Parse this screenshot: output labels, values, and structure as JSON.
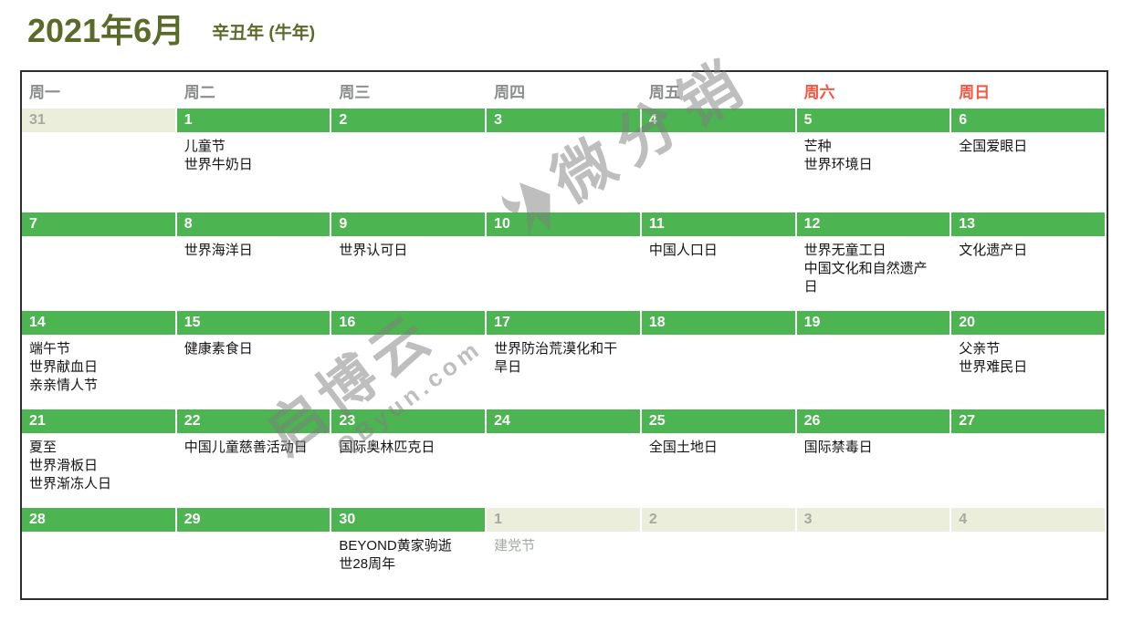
{
  "header": {
    "title": "2021年6月",
    "subtitle": "辛丑年 (牛年)"
  },
  "colors": {
    "title_green": "#5a6a28",
    "bar_green": "#4cb451",
    "bar_out_beige": "#ebeedb",
    "weekday_gray": "#8b8e8e",
    "weekend_red": "#fb5440",
    "event_text": "#141414",
    "out_text": "#a3a9a3",
    "table_border": "#2e2e2e"
  },
  "calendar": {
    "weekdays": [
      {
        "label": "周一",
        "weekend": false
      },
      {
        "label": "周二",
        "weekend": false
      },
      {
        "label": "周三",
        "weekend": false
      },
      {
        "label": "周四",
        "weekend": false
      },
      {
        "label": "周五",
        "weekend": false
      },
      {
        "label": "周六",
        "weekend": true
      },
      {
        "label": "周日",
        "weekend": true
      }
    ],
    "weeks": [
      [
        {
          "num": "31",
          "type": "out",
          "events": []
        },
        {
          "num": "1",
          "type": "cur",
          "events": [
            "儿童节",
            "世界牛奶日"
          ]
        },
        {
          "num": "2",
          "type": "cur",
          "events": []
        },
        {
          "num": "3",
          "type": "cur",
          "events": []
        },
        {
          "num": "4",
          "type": "cur",
          "events": []
        },
        {
          "num": "5",
          "type": "cur",
          "events": [
            "芒种",
            "世界环境日"
          ]
        },
        {
          "num": "6",
          "type": "cur",
          "events": [
            "全国爱眼日"
          ]
        }
      ],
      [
        {
          "num": "7",
          "type": "cur",
          "events": []
        },
        {
          "num": "8",
          "type": "cur",
          "events": [
            "世界海洋日"
          ]
        },
        {
          "num": "9",
          "type": "cur",
          "events": [
            "世界认可日"
          ]
        },
        {
          "num": "10",
          "type": "cur",
          "events": []
        },
        {
          "num": "11",
          "type": "cur",
          "events": [
            "中国人口日"
          ]
        },
        {
          "num": "12",
          "type": "cur",
          "events": [
            "世界无童工日",
            "中国文化和自然遗产日"
          ]
        },
        {
          "num": "13",
          "type": "cur",
          "events": [
            "文化遗产日"
          ]
        }
      ],
      [
        {
          "num": "14",
          "type": "cur",
          "events": [
            "端午节",
            "世界献血日",
            "亲亲情人节"
          ]
        },
        {
          "num": "15",
          "type": "cur",
          "events": [
            "健康素食日"
          ]
        },
        {
          "num": "16",
          "type": "cur",
          "events": []
        },
        {
          "num": "17",
          "type": "cur",
          "events": [
            "世界防治荒漠化和干旱日"
          ]
        },
        {
          "num": "18",
          "type": "cur",
          "events": []
        },
        {
          "num": "19",
          "type": "cur",
          "events": []
        },
        {
          "num": "20",
          "type": "cur",
          "events": [
            "父亲节",
            "世界难民日"
          ]
        }
      ],
      [
        {
          "num": "21",
          "type": "cur",
          "events": [
            "夏至",
            "世界滑板日",
            "世界渐冻人日"
          ]
        },
        {
          "num": "22",
          "type": "cur",
          "events": [
            "中国儿童慈善活动日"
          ]
        },
        {
          "num": "23",
          "type": "cur",
          "events": [
            "国际奥林匹克日"
          ]
        },
        {
          "num": "24",
          "type": "cur",
          "events": []
        },
        {
          "num": "25",
          "type": "cur",
          "events": [
            "全国土地日"
          ]
        },
        {
          "num": "26",
          "type": "cur",
          "events": [
            "国际禁毒日"
          ]
        },
        {
          "num": "27",
          "type": "cur",
          "events": []
        }
      ],
      [
        {
          "num": "28",
          "type": "cur",
          "events": []
        },
        {
          "num": "29",
          "type": "cur",
          "events": []
        },
        {
          "num": "30",
          "type": "cur",
          "events": [
            "BEYOND黄家驹逝世28周年"
          ]
        },
        {
          "num": "1",
          "type": "out",
          "events": [
            "建党节"
          ]
        },
        {
          "num": "2",
          "type": "out",
          "events": []
        },
        {
          "num": "3",
          "type": "out",
          "events": []
        },
        {
          "num": "4",
          "type": "out",
          "events": []
        }
      ]
    ]
  },
  "watermarks": {
    "wm1_text": "微分销",
    "wm2_text": "启博云",
    "wm2_sub": "QByun.com"
  }
}
